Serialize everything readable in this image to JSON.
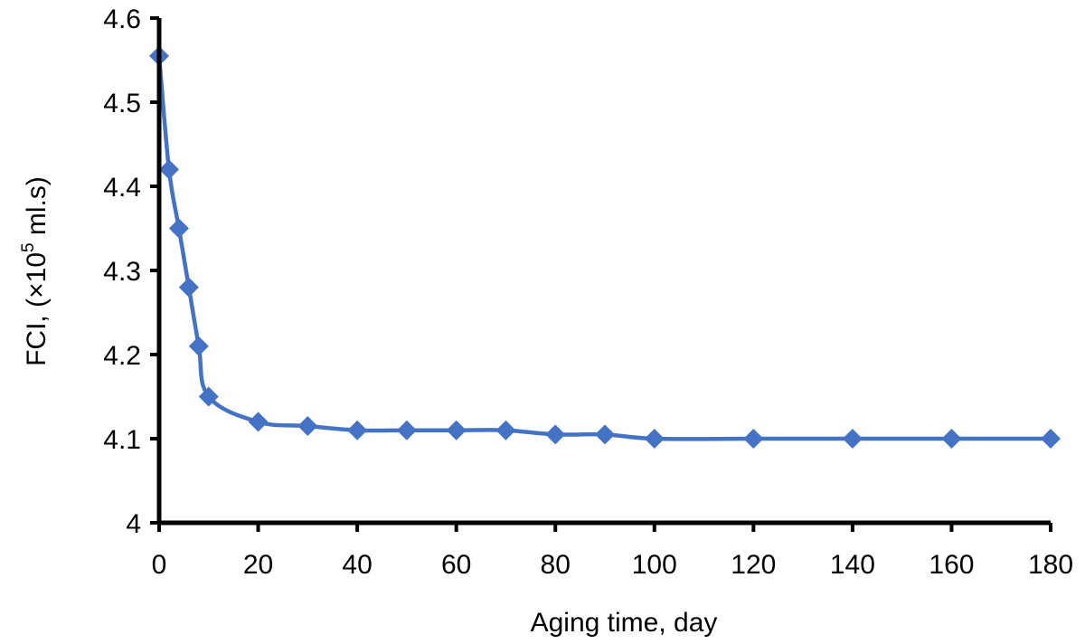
{
  "chart_data": {
    "type": "line",
    "title": "",
    "xlabel": "Aging time, day",
    "ylabel": {
      "prefix": "FCI, (",
      "times": "×10",
      "exponent": "5",
      "suffix": " ml.s)"
    },
    "xlim": [
      0,
      180
    ],
    "ylim": [
      4,
      4.6
    ],
    "xticks": [
      "0",
      "20",
      "40",
      "60",
      "80",
      "100",
      "120",
      "140",
      "160",
      "180"
    ],
    "yticks": [
      "4",
      "4.1",
      "4.2",
      "4.3",
      "4.4",
      "4.5",
      "4.6"
    ],
    "grid": false,
    "legend": "none",
    "series": [
      {
        "color": "#4472C4",
        "marker": "diamond",
        "smooth": true,
        "x": [
          0,
          2,
          4,
          6,
          8,
          10,
          20,
          30,
          40,
          50,
          60,
          70,
          80,
          90,
          100,
          120,
          140,
          160,
          180
        ],
        "y": [
          4.555,
          4.42,
          4.35,
          4.28,
          4.21,
          4.15,
          4.12,
          4.115,
          4.11,
          4.11,
          4.11,
          4.11,
          4.105,
          4.105,
          4.1,
          4.1,
          4.1,
          4.1,
          4.1
        ]
      }
    ]
  }
}
